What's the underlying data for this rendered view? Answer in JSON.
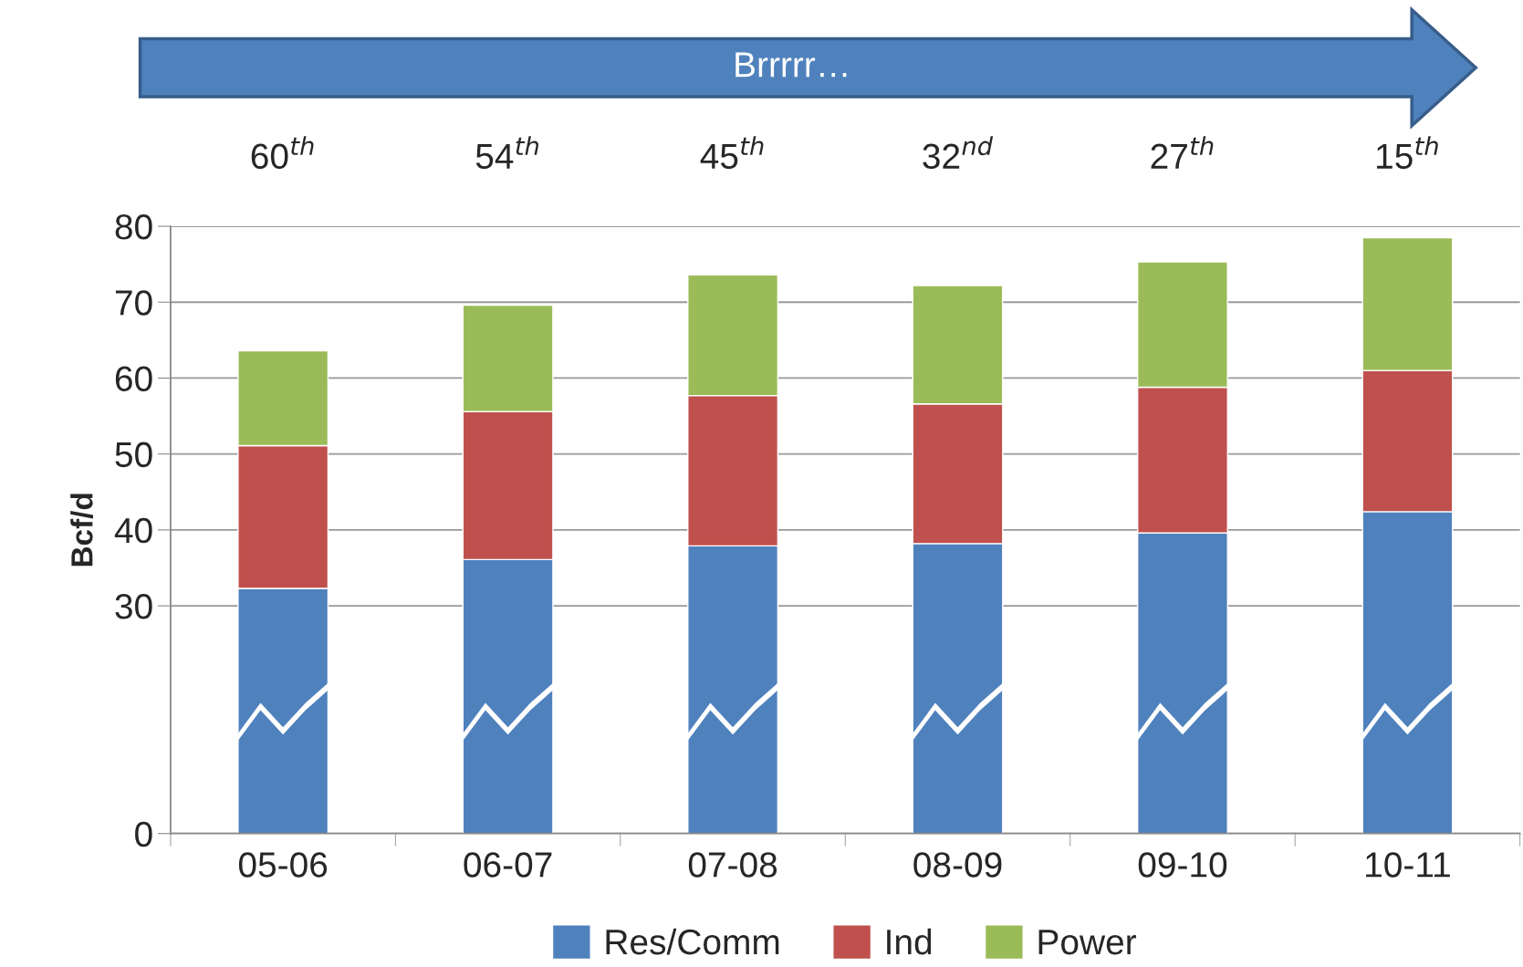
{
  "chart_data": {
    "type": "bar",
    "stacked": true,
    "ylabel": "Bcf/d",
    "categories": [
      "05-06",
      "06-07",
      "07-08",
      "08-09",
      "09-10",
      "10-11"
    ],
    "series": [
      {
        "name": "Res/Comm",
        "color": "#4f81bd",
        "values": [
          32.3,
          36.1,
          37.9,
          38.2,
          39.6,
          42.4
        ]
      },
      {
        "name": "Ind",
        "color": "#c0504d",
        "values": [
          18.8,
          19.5,
          19.8,
          18.4,
          19.2,
          18.6
        ]
      },
      {
        "name": "Power",
        "color": "#9bbb59",
        "values": [
          12.5,
          14.0,
          15.9,
          15.6,
          16.5,
          17.5
        ]
      }
    ],
    "ylim": [
      0,
      80
    ],
    "yticks": [
      0,
      30,
      40,
      50,
      60,
      70,
      80
    ],
    "grid": "y",
    "legend": "bottom",
    "annotations": [
      "Brrrrr…",
      "60$^{th}$",
      "54$^{th}$",
      "45$^{th}$",
      "32$^{nd}$",
      "27$^{th}$",
      "15$^{th}$"
    ]
  }
}
